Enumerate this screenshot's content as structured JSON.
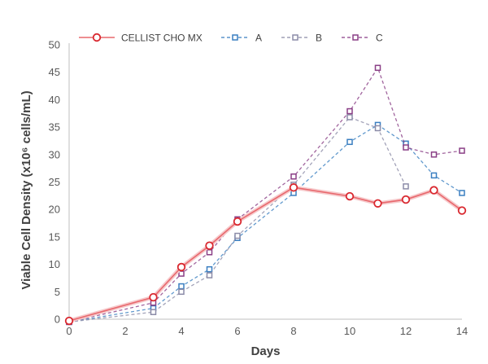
{
  "chart_data": {
    "type": "line",
    "title": "",
    "xlabel": "Days",
    "ylabel": "Viable Cell Density (x10⁶ cells/mL)",
    "xlim": [
      0,
      14
    ],
    "ylim": [
      0,
      50
    ],
    "xticks": [
      0,
      2,
      4,
      6,
      8,
      10,
      12,
      14
    ],
    "yticks": [
      0,
      5,
      10,
      15,
      20,
      25,
      30,
      35,
      40,
      45,
      50
    ],
    "grid": false,
    "legend_position": "top",
    "series": [
      {
        "name": "CELLIST CHO MX",
        "color": "#e8686d",
        "style": "solid",
        "marker": "circle",
        "points": [
          [
            0,
            -0.3
          ],
          [
            3,
            4
          ],
          [
            4,
            9.5
          ],
          [
            5,
            13.4
          ],
          [
            6,
            17.8
          ],
          [
            8,
            24
          ],
          [
            10,
            22.4
          ],
          [
            11,
            21.1
          ],
          [
            12,
            21.8
          ],
          [
            13,
            23.5
          ],
          [
            14,
            19.8
          ]
        ]
      },
      {
        "name": "A",
        "color": "#3a7fc1",
        "style": "dashed",
        "marker": "square",
        "points": [
          [
            0,
            -0.5
          ],
          [
            3,
            2
          ],
          [
            4,
            6
          ],
          [
            5,
            9.1
          ],
          [
            6,
            14.8
          ],
          [
            8,
            23
          ],
          [
            10,
            32.3
          ],
          [
            11,
            35.4
          ],
          [
            12,
            32
          ],
          [
            13,
            26.2
          ],
          [
            14,
            23
          ]
        ]
      },
      {
        "name": "B",
        "color": "#8c8ca8",
        "style": "dashed",
        "marker": "square",
        "points": [
          [
            0,
            -0.5
          ],
          [
            3,
            1.3
          ],
          [
            4,
            5
          ],
          [
            5,
            8
          ],
          [
            6,
            15.2
          ],
          [
            8,
            24.5
          ],
          [
            10,
            36.8
          ],
          [
            11,
            34.8
          ],
          [
            12,
            24.2
          ]
        ]
      },
      {
        "name": "C",
        "color": "#8a3f86",
        "style": "dashed",
        "marker": "square",
        "points": [
          [
            0,
            -0.5
          ],
          [
            3,
            3
          ],
          [
            4,
            8.3
          ],
          [
            5,
            12.2
          ],
          [
            6,
            18.2
          ],
          [
            8,
            26
          ],
          [
            10,
            37.9
          ],
          [
            11,
            45.8
          ],
          [
            12,
            31.3
          ],
          [
            13,
            30
          ],
          [
            14,
            30.7
          ]
        ]
      }
    ]
  }
}
